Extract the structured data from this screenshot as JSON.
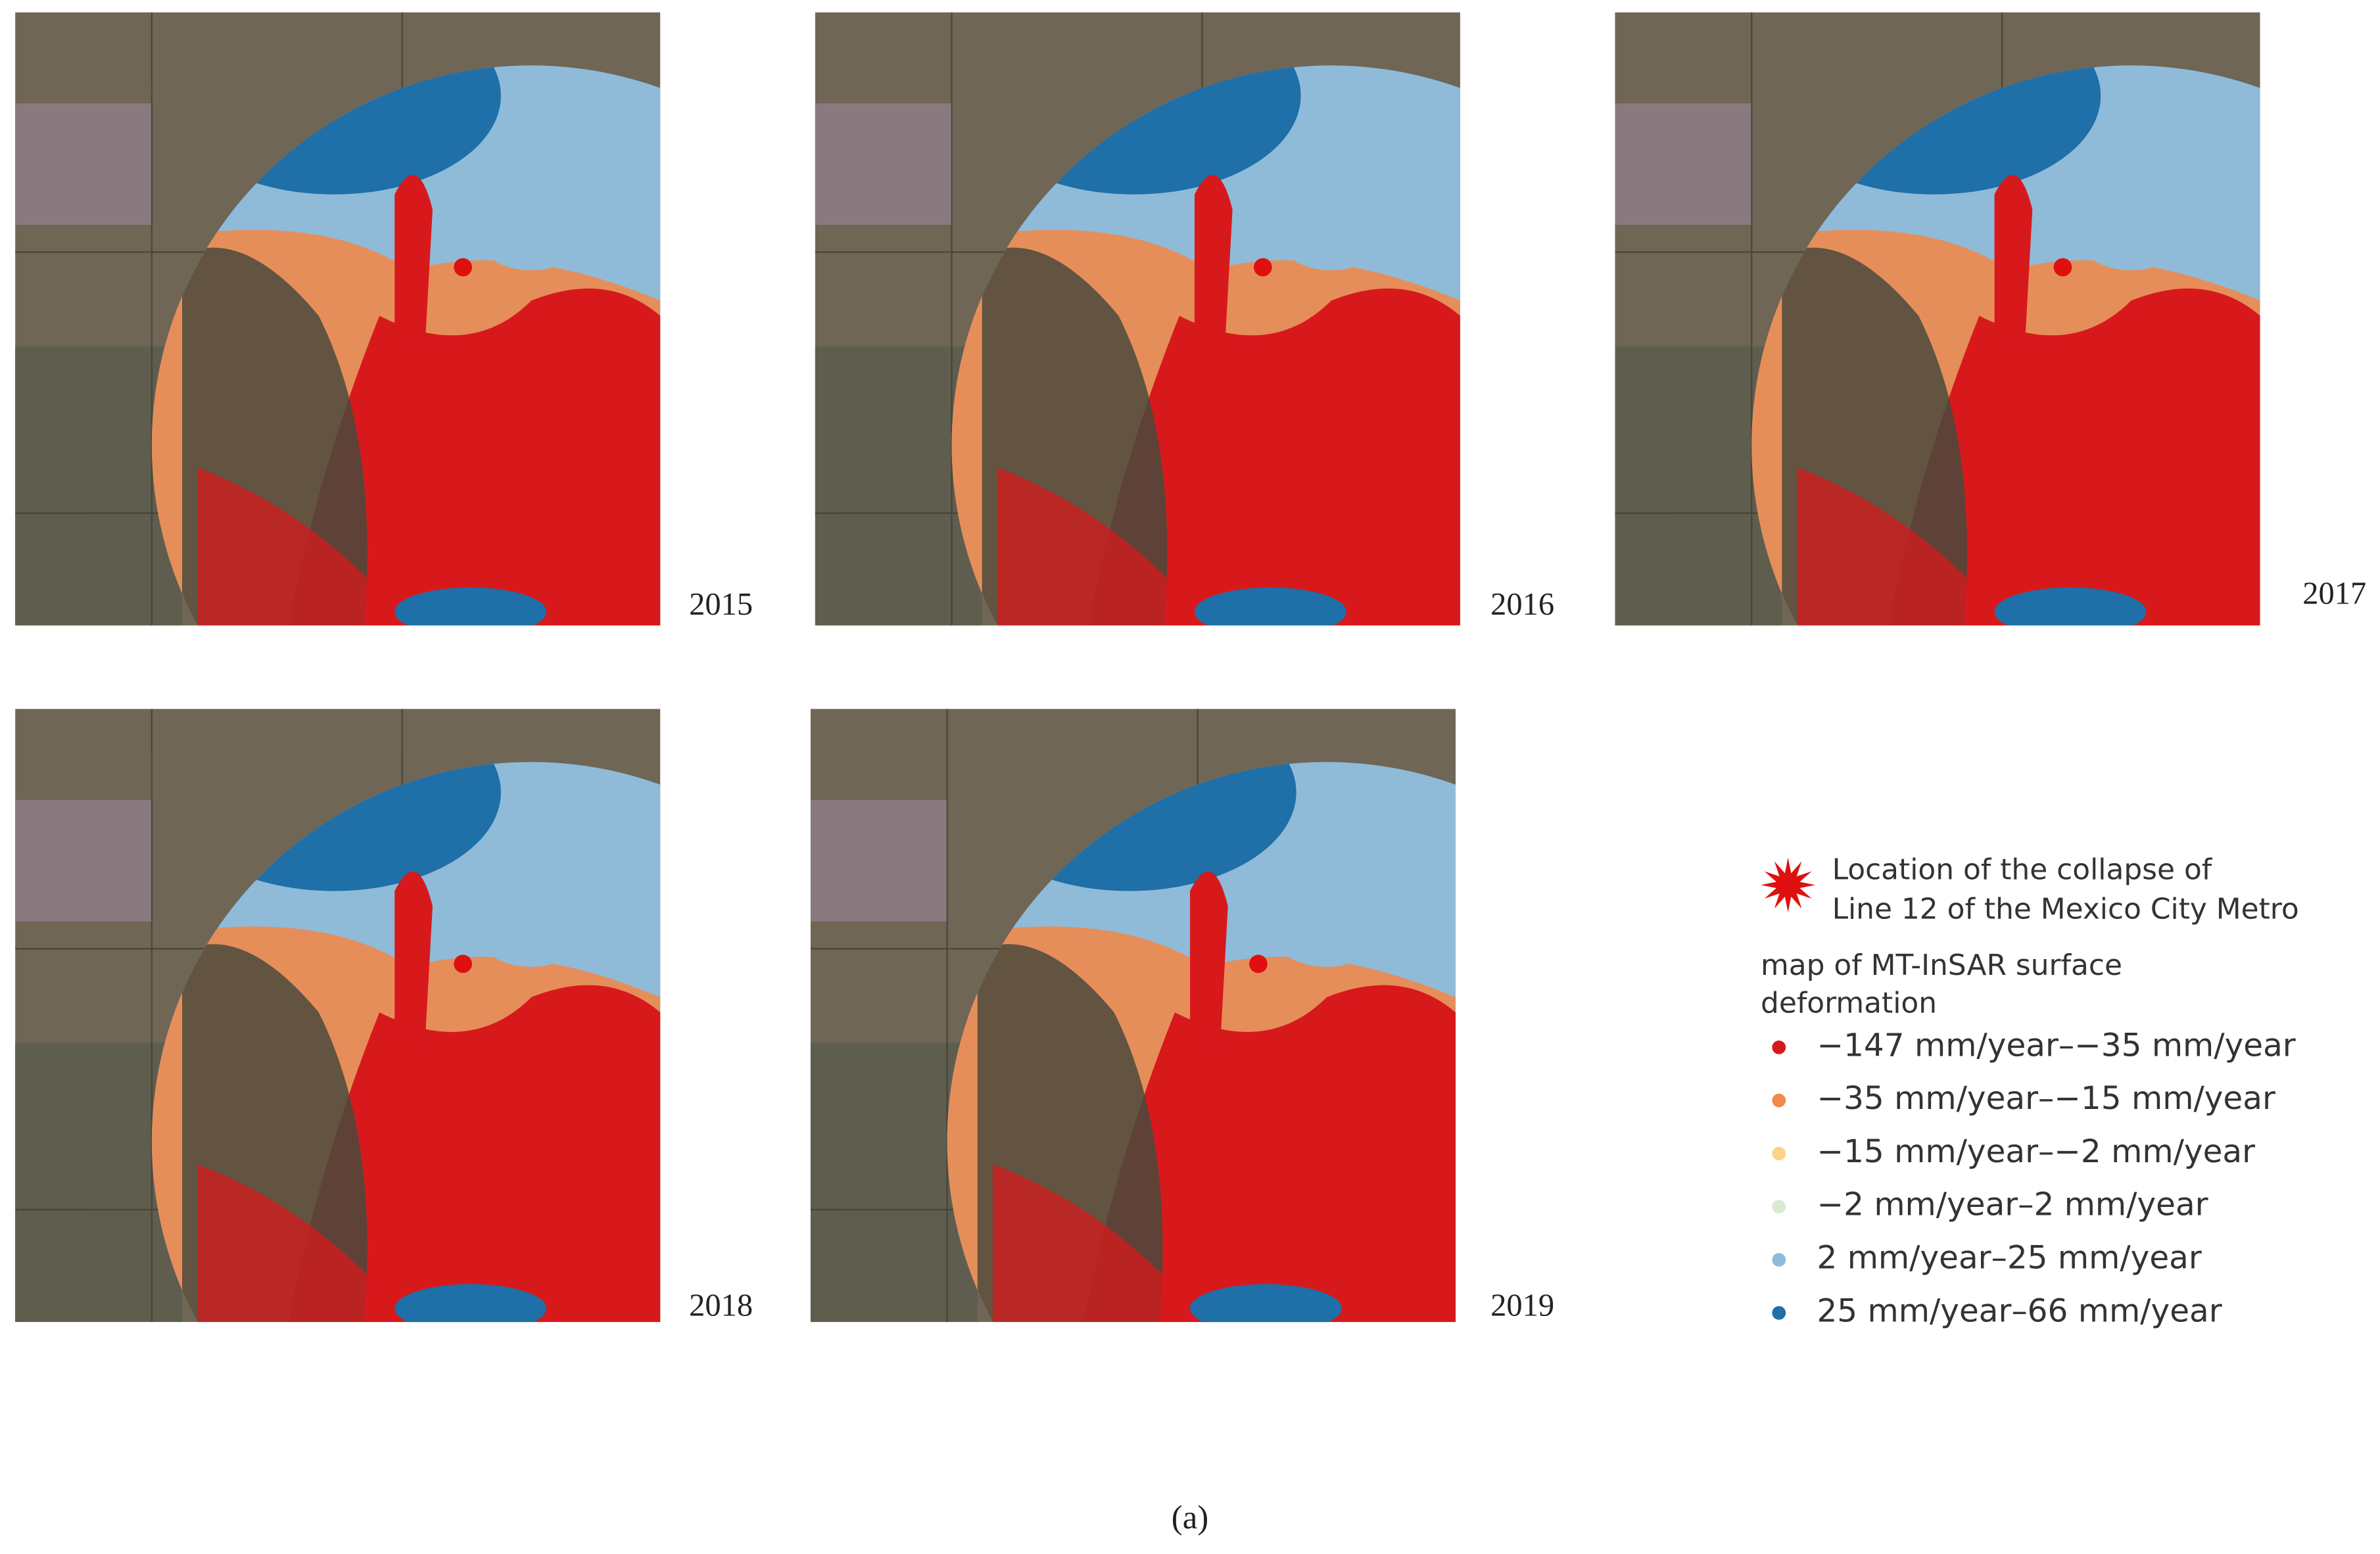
{
  "panels": [
    {
      "year": "2015"
    },
    {
      "year": "2016"
    },
    {
      "year": "2017"
    },
    {
      "year": "2018"
    },
    {
      "year": "2019"
    }
  ],
  "legend": {
    "collapse": [
      "Location of the collapse of",
      "Line 12 of the Mexico City Metro"
    ],
    "map_title": [
      "map of MT-InSAR surface",
      "deformation"
    ],
    "items": [
      {
        "label": "−147 mm/year–−35 mm/year",
        "color": "#d7191c"
      },
      {
        "label": "−35 mm/year–−15 mm/year",
        "color": "#f08a4b"
      },
      {
        "label": "−15 mm/year–−2 mm/year",
        "color": "#fdd38a"
      },
      {
        "label": "−2 mm/year–2 mm/year",
        "color": "#d9ead3"
      },
      {
        "label": "2 mm/year–25 mm/year",
        "color": "#8fbbd9"
      },
      {
        "label": "25 mm/year–66 mm/year",
        "color": "#1f6fa8"
      }
    ]
  },
  "caption": "(a)"
}
